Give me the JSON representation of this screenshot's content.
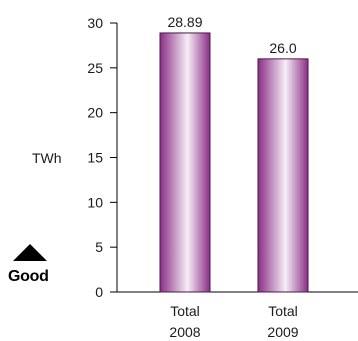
{
  "chart_data": {
    "type": "bar",
    "categories": [
      [
        "Total",
        "2008"
      ],
      [
        "Total",
        "2009"
      ]
    ],
    "values": [
      28.89,
      26.0
    ],
    "value_labels": [
      "28.89",
      "26.0"
    ],
    "ylabel": "TWh",
    "ylim": [
      0,
      30
    ],
    "yticks": [
      0,
      5,
      10,
      15,
      20,
      25,
      30
    ],
    "grid": false,
    "bar_colors": {
      "edge": "#8a2f86",
      "mid": "#f6eef6",
      "fill": "#b05aac"
    }
  },
  "indicator": {
    "label": "Good",
    "icon": "up-triangle-icon"
  }
}
